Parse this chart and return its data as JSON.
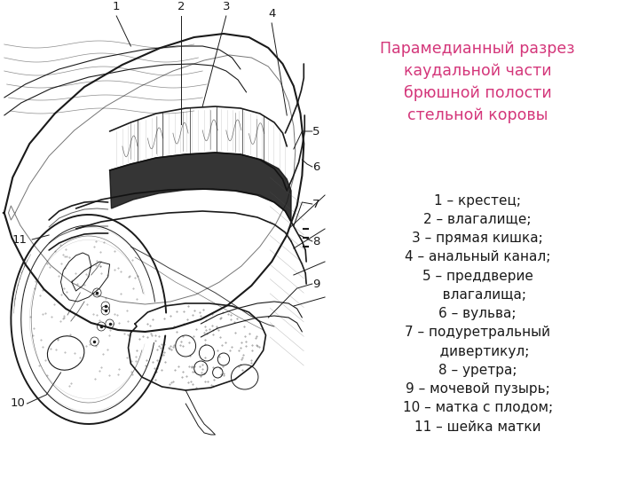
{
  "title_lines": "Парамедианный разрез\nкаудальной части\nбрюшной полости\nстельной коровы",
  "title_color": "#d4367a",
  "title_fontsize": 12.5,
  "labels_text": "1 – крестец;\n2 – влагалище;\n3 – прямая кишка;\n4 – анальный канал;\n5 – преддверие\n   влагалища;\n6 – вульва;\n7 – подуретральный\n   дивертикул;\n8 – уретра;\n9 – мочевой пузырь;\n10 – матка с плодом;\n11 – шейка матки",
  "label_fontsize": 11.0,
  "label_color": "#1a1a1a",
  "bg_color": "#ffffff",
  "fig_width": 7.2,
  "fig_height": 5.4,
  "dpi": 100
}
